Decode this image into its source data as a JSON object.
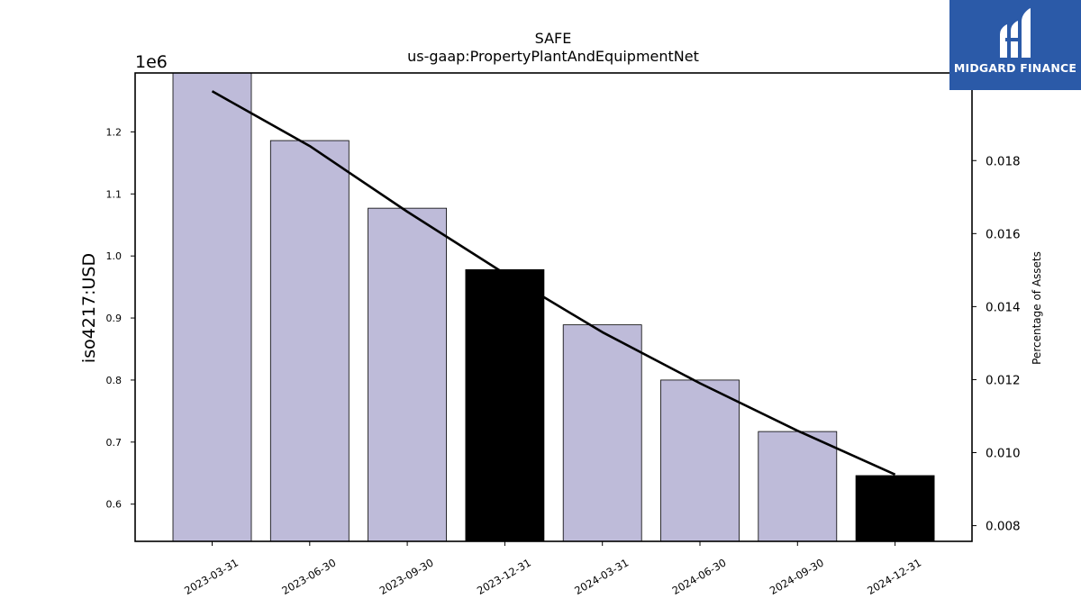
{
  "chart_data": {
    "type": "bar",
    "title": "SAFE",
    "subtitle": "us-gaap:PropertyPlantAndEquipmentNet",
    "ylabel": "iso4217:USD",
    "y_offset_label": "1e6",
    "y2label": "Percentage of Assets",
    "categories": [
      "2023-03-31",
      "2023-06-30",
      "2023-09-30",
      "2023-12-31",
      "2024-03-31",
      "2024-06-30",
      "2024-09-30",
      "2024-12-31"
    ],
    "series": [
      {
        "type": "bar",
        "axis": "left",
        "values": [
          1295000,
          1186000,
          1077000,
          978000,
          889000,
          800000,
          717000,
          646000
        ],
        "highlighted": [
          "2023-12-31",
          "2024-12-31"
        ]
      },
      {
        "type": "line",
        "axis": "right",
        "values": [
          0.0199,
          0.0184,
          0.0166,
          0.0149,
          0.0133,
          0.0119,
          0.0106,
          0.0094
        ]
      }
    ],
    "ylim": [
      540000,
      1295000
    ],
    "y2lim": [
      0.00757,
      0.0204
    ],
    "yticks": [
      600000,
      700000,
      800000,
      900000,
      1000000,
      1100000,
      1200000
    ],
    "ytick_labels": [
      "0.6",
      "0.7",
      "0.8",
      "0.9",
      "1.0",
      "1.1",
      "1.2"
    ],
    "y2ticks": [
      0.008,
      0.01,
      0.012,
      0.014,
      0.016,
      0.018
    ],
    "y2tick_labels": [
      "0.008",
      "0.010",
      "0.012",
      "0.014",
      "0.016",
      "0.018"
    ],
    "grid": false,
    "colors": {
      "bar": "#bebbd9",
      "bar_highlight": "#000000",
      "line": "#000000"
    }
  },
  "logo": {
    "text": "MIDGARD FINANCE",
    "icon": "midgard-logo-mark",
    "background": "#2b5aa8"
  }
}
